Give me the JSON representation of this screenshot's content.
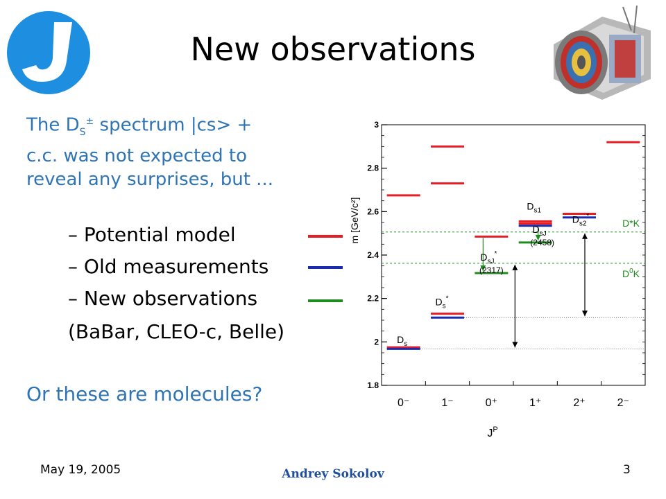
{
  "slide": {
    "title": "New observations",
    "intro_line1_pre": "The D",
    "intro_line1_sub": "S",
    "intro_line1_sup": "±",
    "intro_line1_post": " spectrum |cs> +",
    "intro_line2": "c.c. was not expected to",
    "intro_line3": "reveal any surprises, but ...",
    "legend": [
      {
        "label": "– Potential model",
        "color": "#e41e24"
      },
      {
        "label": "– Old measurements",
        "color": "#1a2bb0"
      },
      {
        "label": "– New observations",
        "color": "#1e8c1e"
      }
    ],
    "experiments": "(BaBar, CLEO-c, Belle)",
    "question": "Or these are molecules?"
  },
  "footer": {
    "date": "May 19, 2005",
    "author": "Andrey Sokolov",
    "page": "3"
  },
  "chart_data": {
    "type": "level-diagram",
    "ylabel": "m [GeV/c²]",
    "xlabel": "J^P",
    "ylim": [
      1.8,
      3.0
    ],
    "yticks": [
      1.8,
      2,
      2.2,
      2.4,
      2.6,
      2.8,
      3
    ],
    "categories": [
      "0⁻",
      "1⁻",
      "0⁺",
      "1⁺",
      "2⁺",
      "2⁻"
    ],
    "series": [
      {
        "name": "Potential model",
        "color": "#e41e24",
        "levels": [
          {
            "x": 0,
            "y": 1.975
          },
          {
            "x": 0,
            "y": 2.675
          },
          {
            "x": 1,
            "y": 2.13
          },
          {
            "x": 1,
            "y": 2.73
          },
          {
            "x": 1,
            "y": 2.9
          },
          {
            "x": 2,
            "y": 2.485
          },
          {
            "x": 3,
            "y": 2.555
          },
          {
            "x": 3,
            "y": 2.545
          },
          {
            "x": 4,
            "y": 2.59
          },
          {
            "x": 5,
            "y": 2.92
          }
        ]
      },
      {
        "name": "Old measurements",
        "color": "#1a2bb0",
        "levels": [
          {
            "x": 0,
            "y": 1.968
          },
          {
            "x": 1,
            "y": 2.112
          },
          {
            "x": 3,
            "y": 2.535
          },
          {
            "x": 4,
            "y": 2.573
          }
        ]
      },
      {
        "name": "New observations",
        "color": "#1e8c1e",
        "levels": [
          {
            "x": 2,
            "y": 2.317
          },
          {
            "x": 3,
            "y": 2.458
          }
        ]
      }
    ],
    "thresholds": [
      {
        "label_main": "D*K",
        "label_sup": "",
        "y": 2.506
      },
      {
        "label_main": "D",
        "label_sup": "0",
        "label_rest": "K",
        "y": 2.362
      }
    ],
    "state_labels": {
      "ds": {
        "main": "D",
        "sub": "s"
      },
      "ds_star": {
        "main": "D",
        "sub": "s",
        "sup": "*"
      },
      "dsj_star": {
        "main": "D",
        "sub": "sJ",
        "sup": "*",
        "mass": "(2317)"
      },
      "dsj": {
        "main": "D",
        "sub": "sJ",
        "mass": "(2458)"
      },
      "ds1": {
        "main": "D",
        "sub": "s1"
      },
      "ds2": {
        "main": "D",
        "sub": "s2",
        "sup": "*"
      }
    },
    "colors": {
      "axis": "#000000",
      "threshold": "#1e8c1e",
      "arrow": "#1e8c1e"
    }
  }
}
